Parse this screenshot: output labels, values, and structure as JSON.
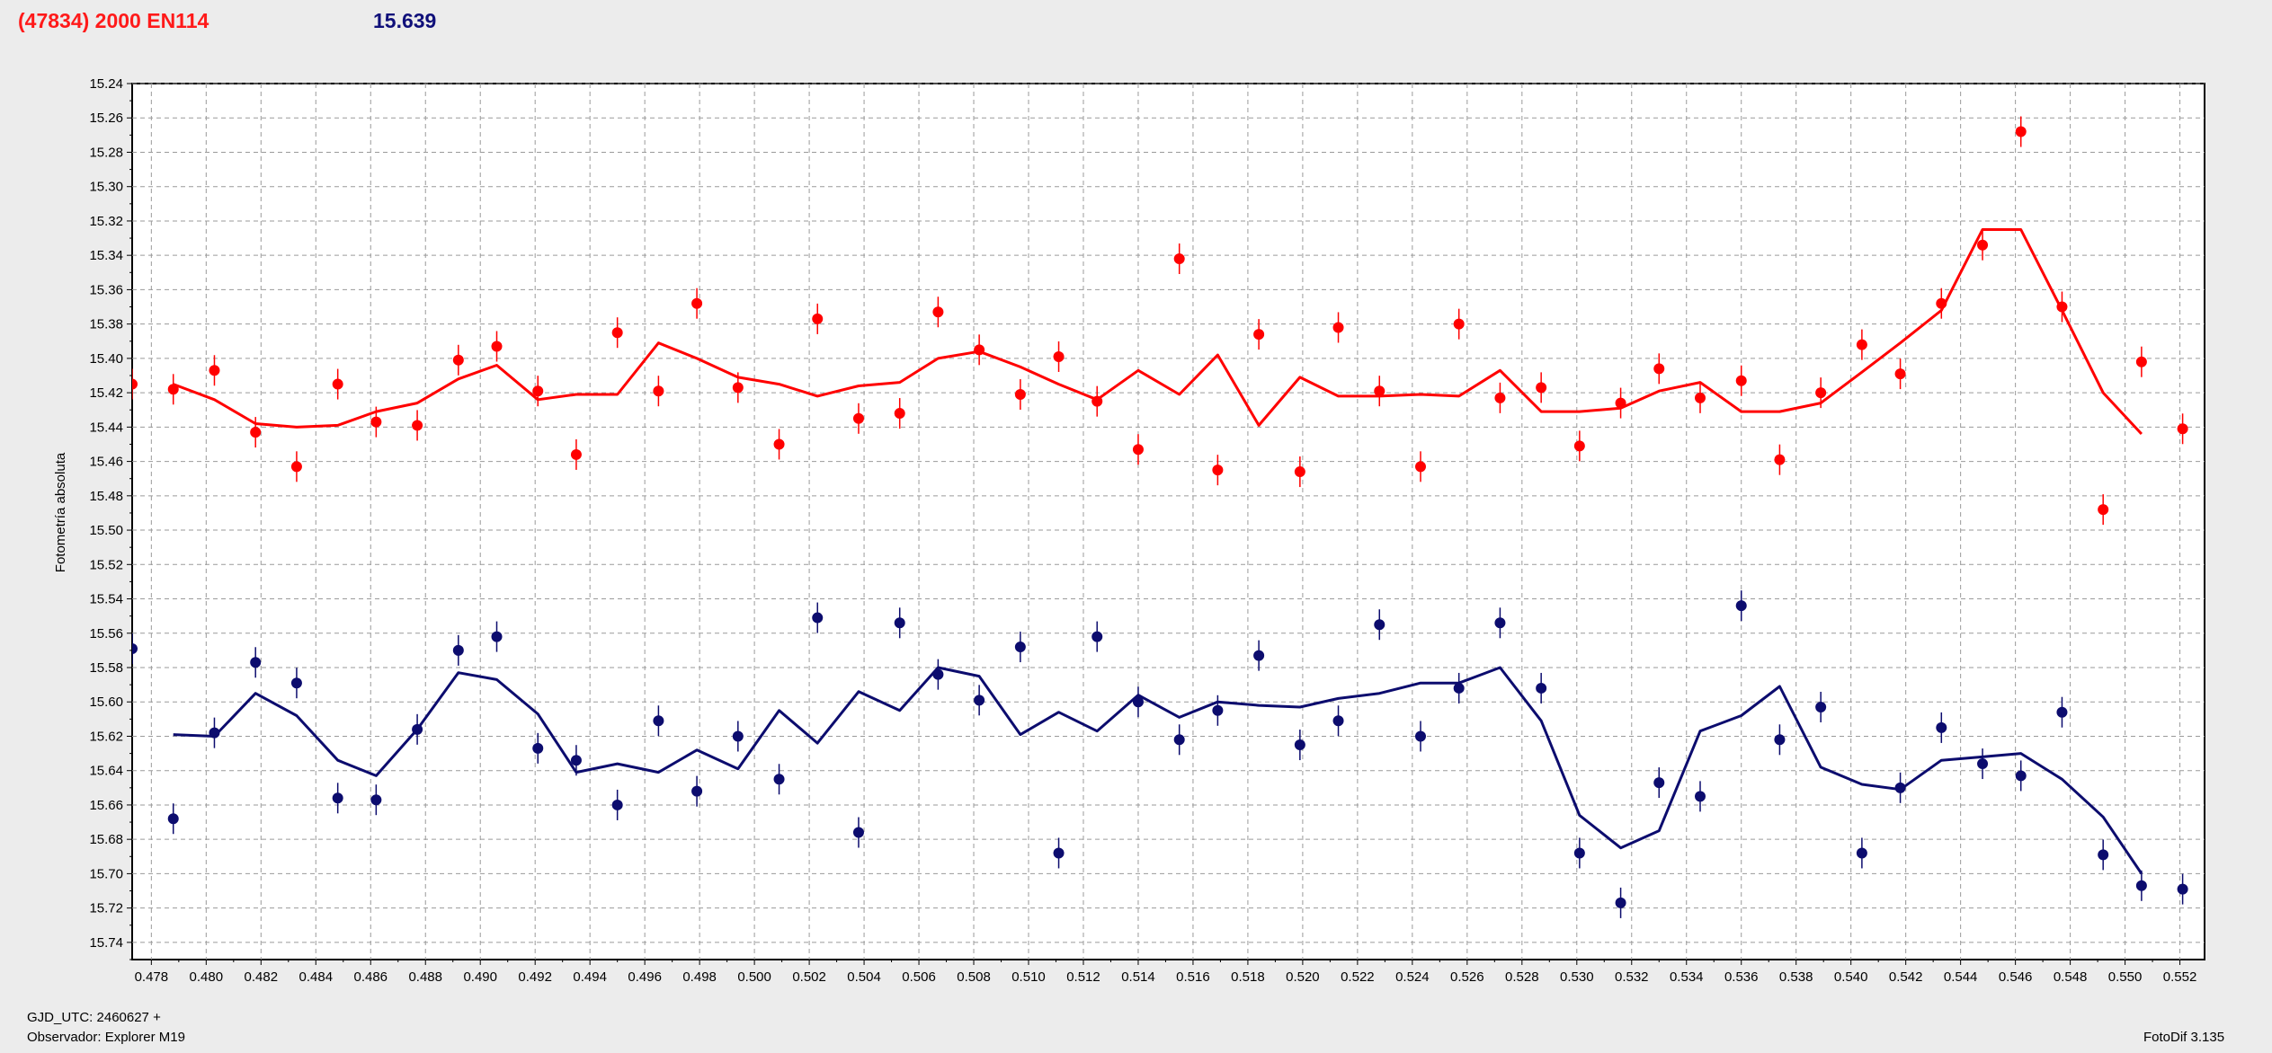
{
  "header": {
    "object": "(47834) 2000 EN114",
    "value": "15.639"
  },
  "footer": {
    "gjd": "GJD_UTC: 2460627 +",
    "observer": "Observador: Explorer M19",
    "software": "FotoDif 3.135"
  },
  "colors": {
    "red": "#ff0000",
    "blue": "#0c0c6e"
  },
  "chart_data": {
    "type": "scatter",
    "title": "",
    "xlabel": "",
    "ylabel": "Fotometría absoluta",
    "xlim": [
      0.4773,
      0.5529
    ],
    "ylim": [
      15.24,
      15.75
    ],
    "y_inverted": true,
    "grid": true,
    "x_ticks": [
      "0.478",
      "0.480",
      "0.482",
      "0.484",
      "0.486",
      "0.488",
      "0.490",
      "0.492",
      "0.494",
      "0.496",
      "0.498",
      "0.500",
      "0.502",
      "0.504",
      "0.506",
      "0.508",
      "0.510",
      "0.512",
      "0.514",
      "0.516",
      "0.518",
      "0.520",
      "0.522",
      "0.524",
      "0.526",
      "0.528",
      "0.530",
      "0.532",
      "0.534",
      "0.536",
      "0.538",
      "0.540",
      "0.542",
      "0.544",
      "0.546",
      "0.548",
      "0.550",
      "0.552"
    ],
    "y_ticks": [
      "15.24",
      "15.26",
      "15.28",
      "15.30",
      "15.32",
      "15.34",
      "15.36",
      "15.38",
      "15.40",
      "15.42",
      "15.44",
      "15.46",
      "15.48",
      "15.50",
      "15.52",
      "15.54",
      "15.56",
      "15.58",
      "15.60",
      "15.62",
      "15.64",
      "15.66",
      "15.68",
      "15.70",
      "15.72",
      "15.74"
    ],
    "series": [
      {
        "color": "red",
        "points": [
          [
            0.4773,
            15.415
          ],
          [
            0.4788,
            15.418
          ],
          [
            0.4803,
            15.407
          ],
          [
            0.4818,
            15.443
          ],
          [
            0.4833,
            15.463
          ],
          [
            0.4848,
            15.415
          ],
          [
            0.4862,
            15.437
          ],
          [
            0.4877,
            15.439
          ],
          [
            0.4892,
            15.401
          ],
          [
            0.4906,
            15.393
          ],
          [
            0.4921,
            15.419
          ],
          [
            0.4935,
            15.456
          ],
          [
            0.495,
            15.385
          ],
          [
            0.4965,
            15.419
          ],
          [
            0.4979,
            15.368
          ],
          [
            0.4994,
            15.417
          ],
          [
            0.5009,
            15.45
          ],
          [
            0.5023,
            15.377
          ],
          [
            0.5038,
            15.435
          ],
          [
            0.5053,
            15.432
          ],
          [
            0.5067,
            15.373
          ],
          [
            0.5082,
            15.395
          ],
          [
            0.5097,
            15.421
          ],
          [
            0.5111,
            15.399
          ],
          [
            0.5125,
            15.425
          ],
          [
            0.514,
            15.453
          ],
          [
            0.5155,
            15.342
          ],
          [
            0.5169,
            15.465
          ],
          [
            0.5184,
            15.386
          ],
          [
            0.5199,
            15.466
          ],
          [
            0.5213,
            15.382
          ],
          [
            0.5228,
            15.419
          ],
          [
            0.5243,
            15.463
          ],
          [
            0.5257,
            15.38
          ],
          [
            0.5272,
            15.423
          ],
          [
            0.5287,
            15.417
          ],
          [
            0.5301,
            15.451
          ],
          [
            0.5316,
            15.426
          ],
          [
            0.533,
            15.406
          ],
          [
            0.5345,
            15.423
          ],
          [
            0.536,
            15.413
          ],
          [
            0.5374,
            15.459
          ],
          [
            0.5389,
            15.42
          ],
          [
            0.5404,
            15.392
          ],
          [
            0.5418,
            15.409
          ],
          [
            0.5433,
            15.368
          ],
          [
            0.5448,
            15.334
          ],
          [
            0.5462,
            15.268
          ],
          [
            0.5477,
            15.37
          ],
          [
            0.5492,
            15.488
          ],
          [
            0.5506,
            15.402
          ],
          [
            0.5521,
            15.441
          ]
        ],
        "fit": [
          [
            0.4788,
            15.415
          ],
          [
            0.4803,
            15.424
          ],
          [
            0.4818,
            15.438
          ],
          [
            0.4833,
            15.44
          ],
          [
            0.4848,
            15.439
          ],
          [
            0.4862,
            15.431
          ],
          [
            0.4877,
            15.426
          ],
          [
            0.4892,
            15.412
          ],
          [
            0.4906,
            15.404
          ],
          [
            0.4921,
            15.424
          ],
          [
            0.4935,
            15.421
          ],
          [
            0.495,
            15.421
          ],
          [
            0.4965,
            15.391
          ],
          [
            0.4979,
            15.4
          ],
          [
            0.4994,
            15.411
          ],
          [
            0.5009,
            15.415
          ],
          [
            0.5023,
            15.422
          ],
          [
            0.5038,
            15.416
          ],
          [
            0.5053,
            15.414
          ],
          [
            0.5067,
            15.4
          ],
          [
            0.5082,
            15.396
          ],
          [
            0.5097,
            15.405
          ],
          [
            0.5111,
            15.415
          ],
          [
            0.5125,
            15.424
          ],
          [
            0.514,
            15.407
          ],
          [
            0.5155,
            15.421
          ],
          [
            0.5169,
            15.398
          ],
          [
            0.5184,
            15.439
          ],
          [
            0.5199,
            15.411
          ],
          [
            0.5213,
            15.422
          ],
          [
            0.5228,
            15.422
          ],
          [
            0.5243,
            15.421
          ],
          [
            0.5257,
            15.422
          ],
          [
            0.5272,
            15.407
          ],
          [
            0.5287,
            15.431
          ],
          [
            0.5301,
            15.431
          ],
          [
            0.5316,
            15.429
          ],
          [
            0.533,
            15.419
          ],
          [
            0.5345,
            15.414
          ],
          [
            0.536,
            15.431
          ],
          [
            0.5374,
            15.431
          ],
          [
            0.5389,
            15.426
          ],
          [
            0.5404,
            15.408
          ],
          [
            0.5418,
            15.391
          ],
          [
            0.5433,
            15.372
          ],
          [
            0.5448,
            15.325
          ],
          [
            0.5462,
            15.325
          ],
          [
            0.5477,
            15.372
          ],
          [
            0.5492,
            15.42
          ],
          [
            0.5506,
            15.444
          ]
        ]
      },
      {
        "color": "blue",
        "points": [
          [
            0.4773,
            15.569
          ],
          [
            0.4788,
            15.668
          ],
          [
            0.4803,
            15.618
          ],
          [
            0.4818,
            15.577
          ],
          [
            0.4833,
            15.589
          ],
          [
            0.4848,
            15.656
          ],
          [
            0.4862,
            15.657
          ],
          [
            0.4877,
            15.616
          ],
          [
            0.4892,
            15.57
          ],
          [
            0.4906,
            15.562
          ],
          [
            0.4921,
            15.627
          ],
          [
            0.4935,
            15.634
          ],
          [
            0.495,
            15.66
          ],
          [
            0.4965,
            15.611
          ],
          [
            0.4979,
            15.652
          ],
          [
            0.4994,
            15.62
          ],
          [
            0.5009,
            15.645
          ],
          [
            0.5023,
            15.551
          ],
          [
            0.5038,
            15.676
          ],
          [
            0.5053,
            15.554
          ],
          [
            0.5067,
            15.584
          ],
          [
            0.5082,
            15.599
          ],
          [
            0.5097,
            15.568
          ],
          [
            0.5111,
            15.688
          ],
          [
            0.5125,
            15.562
          ],
          [
            0.514,
            15.6
          ],
          [
            0.5155,
            15.622
          ],
          [
            0.5169,
            15.605
          ],
          [
            0.5184,
            15.573
          ],
          [
            0.5199,
            15.625
          ],
          [
            0.5213,
            15.611
          ],
          [
            0.5228,
            15.555
          ],
          [
            0.5243,
            15.62
          ],
          [
            0.5257,
            15.592
          ],
          [
            0.5272,
            15.554
          ],
          [
            0.5287,
            15.592
          ],
          [
            0.5301,
            15.688
          ],
          [
            0.5316,
            15.717
          ],
          [
            0.533,
            15.647
          ],
          [
            0.5345,
            15.655
          ],
          [
            0.536,
            15.544
          ],
          [
            0.5374,
            15.622
          ],
          [
            0.5389,
            15.603
          ],
          [
            0.5404,
            15.688
          ],
          [
            0.5418,
            15.65
          ],
          [
            0.5433,
            15.615
          ],
          [
            0.5448,
            15.636
          ],
          [
            0.5462,
            15.643
          ],
          [
            0.5477,
            15.606
          ],
          [
            0.5492,
            15.689
          ],
          [
            0.5506,
            15.707
          ],
          [
            0.5521,
            15.709
          ]
        ],
        "fit": [
          [
            0.4788,
            15.619
          ],
          [
            0.4803,
            15.62
          ],
          [
            0.4818,
            15.595
          ],
          [
            0.4833,
            15.608
          ],
          [
            0.4848,
            15.634
          ],
          [
            0.4862,
            15.643
          ],
          [
            0.4877,
            15.616
          ],
          [
            0.4892,
            15.583
          ],
          [
            0.4906,
            15.587
          ],
          [
            0.4921,
            15.607
          ],
          [
            0.4935,
            15.641
          ],
          [
            0.495,
            15.636
          ],
          [
            0.4965,
            15.641
          ],
          [
            0.4979,
            15.628
          ],
          [
            0.4994,
            15.639
          ],
          [
            0.5009,
            15.605
          ],
          [
            0.5023,
            15.624
          ],
          [
            0.5038,
            15.594
          ],
          [
            0.5053,
            15.605
          ],
          [
            0.5067,
            15.58
          ],
          [
            0.5082,
            15.585
          ],
          [
            0.5097,
            15.619
          ],
          [
            0.5111,
            15.606
          ],
          [
            0.5125,
            15.617
          ],
          [
            0.514,
            15.596
          ],
          [
            0.5155,
            15.609
          ],
          [
            0.5169,
            15.6
          ],
          [
            0.5184,
            15.602
          ],
          [
            0.5199,
            15.603
          ],
          [
            0.5213,
            15.598
          ],
          [
            0.5228,
            15.595
          ],
          [
            0.5243,
            15.589
          ],
          [
            0.5257,
            15.589
          ],
          [
            0.5272,
            15.58
          ],
          [
            0.5287,
            15.611
          ],
          [
            0.5301,
            15.666
          ],
          [
            0.5316,
            15.685
          ],
          [
            0.533,
            15.675
          ],
          [
            0.5345,
            15.617
          ],
          [
            0.536,
            15.608
          ],
          [
            0.5374,
            15.591
          ],
          [
            0.5389,
            15.638
          ],
          [
            0.5404,
            15.648
          ],
          [
            0.5418,
            15.651
          ],
          [
            0.5433,
            15.634
          ],
          [
            0.5448,
            15.632
          ],
          [
            0.5462,
            15.63
          ],
          [
            0.5477,
            15.645
          ],
          [
            0.5492,
            15.667
          ],
          [
            0.5506,
            15.7
          ]
        ]
      }
    ]
  }
}
